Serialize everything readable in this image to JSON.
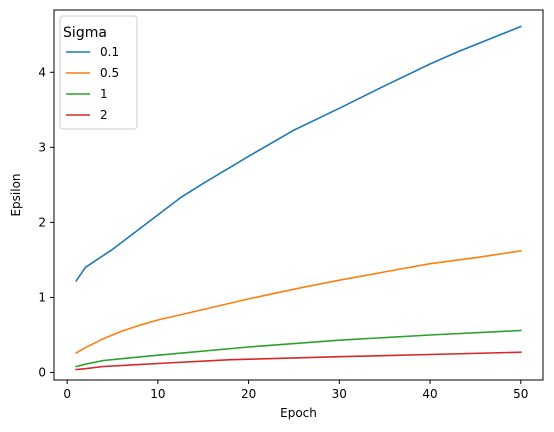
{
  "chart_data": {
    "type": "line",
    "title": "",
    "xlabel": "Epoch",
    "ylabel": "Epsilon",
    "xlim": [
      -1.45,
      52.45
    ],
    "ylim": [
      -0.1,
      4.83
    ],
    "xticks": [
      0,
      10,
      20,
      30,
      40,
      50
    ],
    "yticks": [
      0,
      1,
      2,
      3,
      4
    ],
    "grid": false,
    "legend": {
      "title": "Sigma",
      "placement": "top-left"
    },
    "series": [
      {
        "name": "0.1",
        "color": "#1f77b4",
        "x": [
          1,
          2,
          5,
          10,
          12.5,
          15,
          20,
          25,
          30,
          35,
          40,
          43,
          50
        ],
        "y": [
          1.22,
          1.4,
          1.64,
          2.1,
          2.33,
          2.52,
          2.88,
          3.23,
          3.52,
          3.82,
          4.11,
          4.27,
          4.61
        ]
      },
      {
        "name": "0.5",
        "color": "#ff7f0e",
        "x": [
          1,
          2,
          4,
          6,
          8,
          10,
          15,
          20,
          25,
          30,
          35,
          40,
          45,
          50
        ],
        "y": [
          0.26,
          0.33,
          0.45,
          0.55,
          0.63,
          0.7,
          0.84,
          0.98,
          1.11,
          1.23,
          1.34,
          1.45,
          1.53,
          1.62
        ]
      },
      {
        "name": "1",
        "color": "#2ca02c",
        "x": [
          1,
          2,
          4,
          10,
          20,
          30,
          40,
          50
        ],
        "y": [
          0.08,
          0.11,
          0.16,
          0.23,
          0.34,
          0.43,
          0.5,
          0.56
        ]
      },
      {
        "name": "2",
        "color": "#d62728",
        "x": [
          1,
          2,
          4,
          10,
          18,
          30,
          40,
          50
        ],
        "y": [
          0.04,
          0.05,
          0.08,
          0.12,
          0.17,
          0.21,
          0.24,
          0.27
        ]
      }
    ]
  }
}
